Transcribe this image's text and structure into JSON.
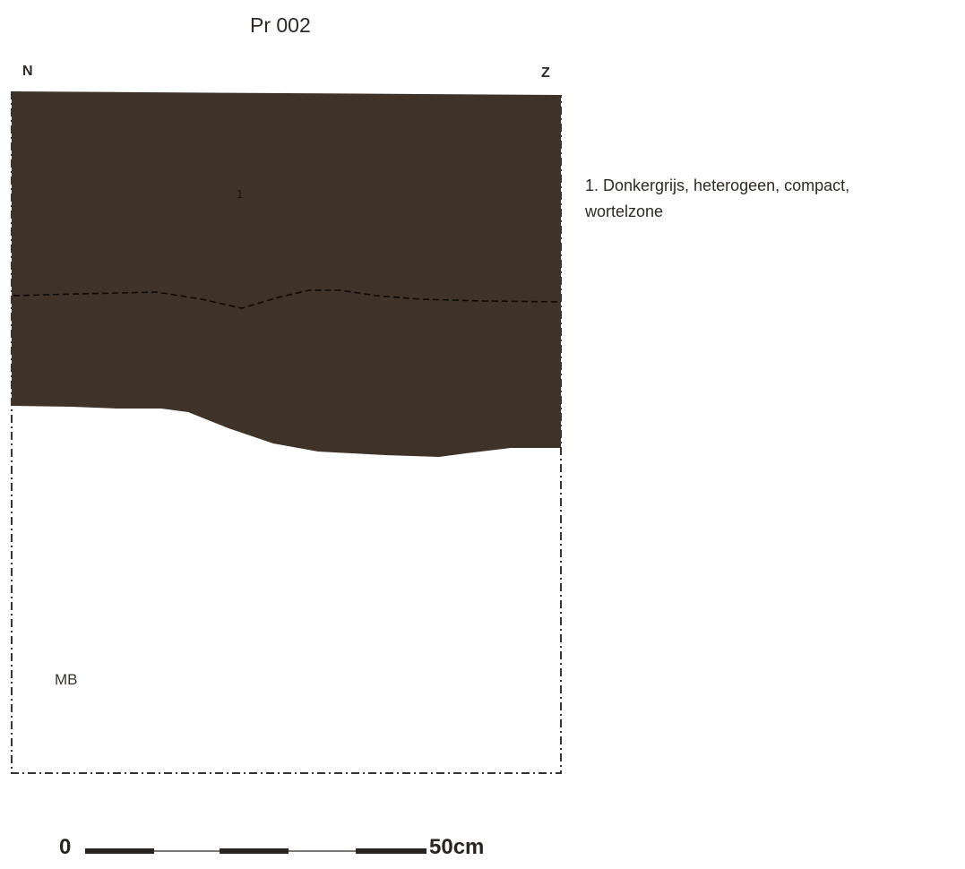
{
  "title": "Pr 002",
  "orientation": {
    "left": "N",
    "right": "Z"
  },
  "layers": [
    {
      "number": "1",
      "fill": "#3e3229"
    }
  ],
  "subsoil_label": "MB",
  "legend": {
    "line1": "1. Donkergrijs, heterogeen, compact,",
    "line2": "wortelzone"
  },
  "scale_bar": {
    "start_label": "0",
    "end_label": "50cm"
  },
  "colors": {
    "soil": "#3e3229",
    "outline": "#3a3430",
    "text": "#2f2a26"
  }
}
